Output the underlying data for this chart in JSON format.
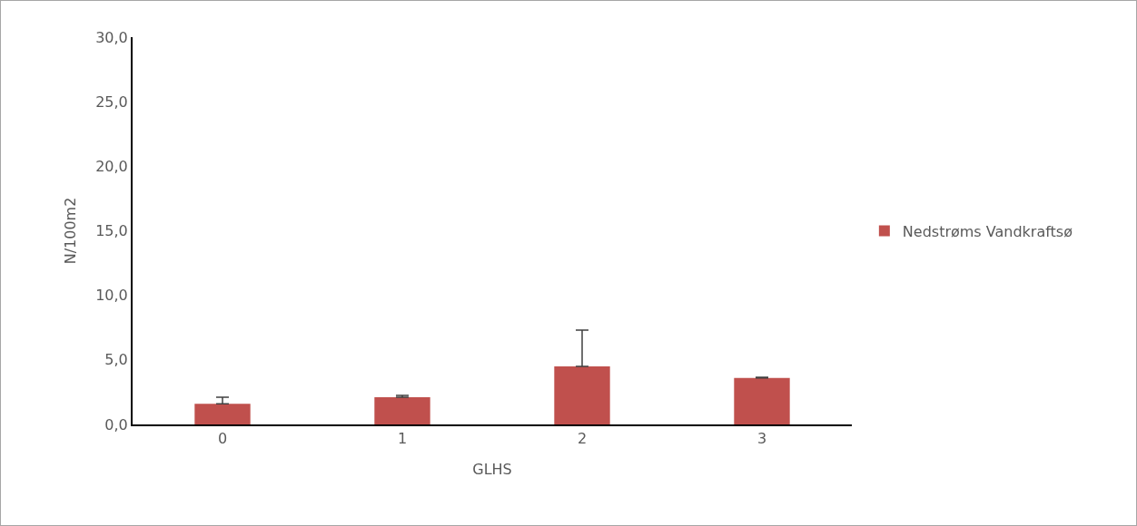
{
  "chart_data": {
    "type": "bar",
    "xlabel": "GLHS",
    "ylabel": "N/100m2",
    "categories": [
      "0",
      "1",
      "2",
      "3"
    ],
    "series": [
      {
        "name": "Nedstrøms Vandkraftsø",
        "color": "#c0504d",
        "values": [
          1.6,
          2.1,
          4.5,
          3.6
        ],
        "errors": [
          [
            1.6,
            2.1
          ],
          [
            2.1,
            2.25
          ],
          [
            4.5,
            7.3
          ],
          [
            3.6,
            3.65
          ]
        ]
      }
    ],
    "ylim": [
      0,
      30
    ],
    "yticks": [
      {
        "value": 0,
        "label": "0,0"
      },
      {
        "value": 5,
        "label": "5,0"
      },
      {
        "value": 10,
        "label": "10,0"
      },
      {
        "value": 15,
        "label": "15,0"
      },
      {
        "value": 20,
        "label": "20,0"
      },
      {
        "value": 25,
        "label": "25,0"
      },
      {
        "value": 30,
        "label": "30,0"
      }
    ],
    "grid": false,
    "legend": "right"
  }
}
